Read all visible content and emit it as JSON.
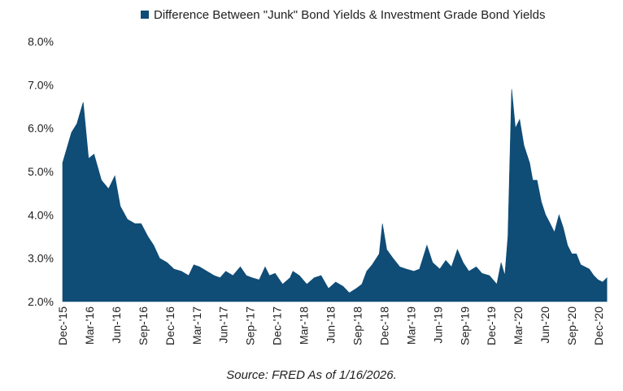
{
  "chart_data": {
    "type": "area",
    "title": "",
    "legend": {
      "position": "top-center",
      "entries": [
        "Difference Between \"Junk\" Bond Yields & Investment Grade Bond Yields"
      ]
    },
    "series": [
      {
        "name": "Difference Between \"Junk\" Bond Yields & Investment Grade Bond Yields",
        "color": "#0f4c76",
        "x": [
          "2015-12-01",
          "2016-01-01",
          "2016-01-20",
          "2016-02-11",
          "2016-03-01",
          "2016-03-20",
          "2016-04-15",
          "2016-05-10",
          "2016-06-01",
          "2016-06-20",
          "2016-07-15",
          "2016-08-10",
          "2016-09-01",
          "2016-09-25",
          "2016-10-15",
          "2016-11-05",
          "2016-12-01",
          "2016-12-25",
          "2017-01-20",
          "2017-02-15",
          "2017-03-05",
          "2017-03-25",
          "2017-04-20",
          "2017-05-15",
          "2017-06-05",
          "2017-06-25",
          "2017-07-20",
          "2017-08-15",
          "2017-09-05",
          "2017-09-25",
          "2017-10-20",
          "2017-11-10",
          "2017-11-25",
          "2017-12-15",
          "2018-01-10",
          "2018-02-05",
          "2018-02-15",
          "2018-03-10",
          "2018-04-05",
          "2018-05-01",
          "2018-05-25",
          "2018-06-20",
          "2018-07-15",
          "2018-08-10",
          "2018-09-01",
          "2018-09-25",
          "2018-10-15",
          "2018-11-01",
          "2018-11-20",
          "2018-12-15",
          "2018-12-26",
          "2019-01-10",
          "2019-02-01",
          "2019-02-25",
          "2019-03-20",
          "2019-04-15",
          "2019-05-05",
          "2019-05-31",
          "2019-06-20",
          "2019-07-15",
          "2019-08-05",
          "2019-08-25",
          "2019-09-15",
          "2019-10-05",
          "2019-10-25",
          "2019-11-20",
          "2019-12-10",
          "2020-01-05",
          "2020-01-31",
          "2020-02-15",
          "2020-02-28",
          "2020-03-10",
          "2020-03-23",
          "2020-04-05",
          "2020-04-20",
          "2020-05-05",
          "2020-05-25",
          "2020-06-05",
          "2020-06-20",
          "2020-07-05",
          "2020-07-20",
          "2020-08-05",
          "2020-08-20",
          "2020-09-05",
          "2020-09-20",
          "2020-10-05",
          "2020-10-20",
          "2020-11-05",
          "2020-11-20",
          "2020-12-05",
          "2020-12-20",
          "2021-01-05",
          "2021-01-20",
          "2021-02-05",
          "2021-02-20"
        ],
        "y": [
          5.2,
          5.9,
          6.1,
          6.6,
          5.3,
          5.4,
          4.8,
          4.6,
          4.9,
          4.2,
          3.9,
          3.8,
          3.8,
          3.5,
          3.3,
          3.0,
          2.9,
          2.75,
          2.7,
          2.6,
          2.85,
          2.8,
          2.7,
          2.6,
          2.55,
          2.7,
          2.6,
          2.8,
          2.6,
          2.55,
          2.5,
          2.8,
          2.6,
          2.65,
          2.4,
          2.55,
          2.7,
          2.6,
          2.4,
          2.55,
          2.6,
          2.3,
          2.45,
          2.35,
          2.2,
          2.3,
          2.4,
          2.7,
          2.85,
          3.1,
          3.8,
          3.2,
          3.0,
          2.8,
          2.75,
          2.7,
          2.75,
          3.3,
          2.9,
          2.75,
          2.95,
          2.8,
          3.2,
          2.9,
          2.7,
          2.8,
          2.65,
          2.6,
          2.4,
          2.9,
          2.6,
          3.5,
          6.9,
          6.0,
          6.2,
          5.6,
          5.2,
          4.8,
          4.8,
          4.3,
          4.0,
          3.8,
          3.6,
          4.0,
          3.7,
          3.3,
          3.1,
          3.1,
          2.85,
          2.8,
          2.75,
          2.6,
          2.5,
          2.45,
          2.55
        ]
      }
    ],
    "x_ticks": [
      "Dec-'15",
      "Mar-'16",
      "Jun-'16",
      "Sep-'16",
      "Dec-'16",
      "Mar-'17",
      "Jun-'17",
      "Sep-'17",
      "Dec-'17",
      "Mar-'18",
      "Jun-'18",
      "Sep-'18",
      "Dec-'18",
      "Mar-'19",
      "Jun-'19",
      "Sep-'19",
      "Dec-'19",
      "Mar-'20",
      "Jun-'20",
      "Sep-'20",
      "Dec-'20"
    ],
    "y_ticks": [
      "2.0%",
      "3.0%",
      "4.0%",
      "5.0%",
      "6.0%",
      "7.0%",
      "8.0%"
    ],
    "ylim": [
      2.0,
      8.0
    ],
    "grid": false,
    "source": "Source: FRED As of 1/16/2026."
  }
}
